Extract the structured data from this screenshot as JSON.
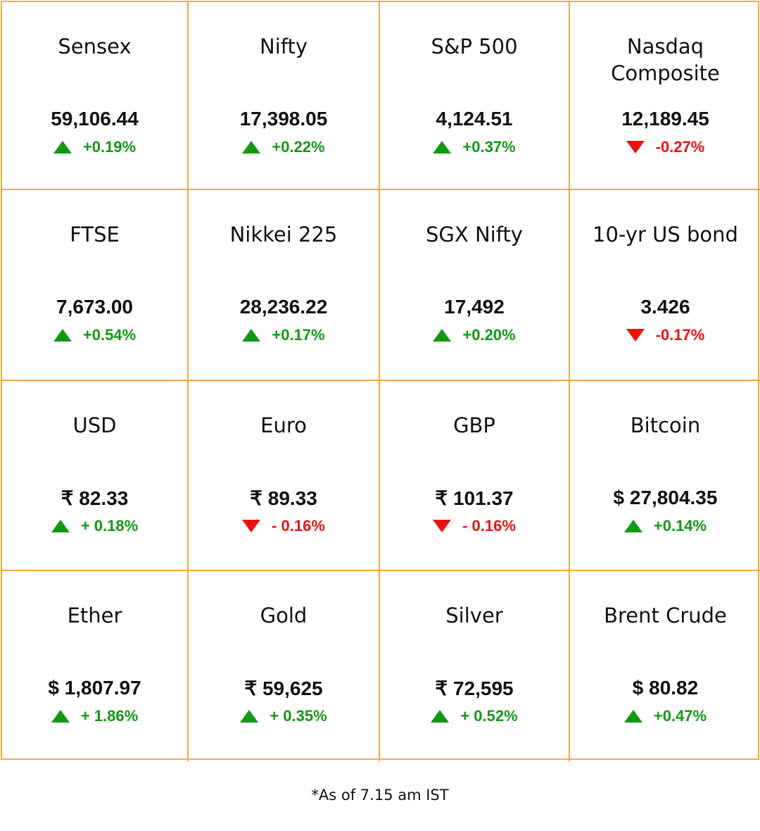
{
  "colors": {
    "border": "#F9A83E",
    "up": "#119911",
    "down": "#EE1111"
  },
  "cells": [
    {
      "title": "Sensex",
      "value": "59,106.44",
      "change": "+0.19%",
      "direction": "up"
    },
    {
      "title": "Nifty",
      "value": "17,398.05",
      "change": "+0.22%",
      "direction": "up"
    },
    {
      "title": "S&P 500",
      "value": "4,124.51",
      "change": "+0.37%",
      "direction": "up"
    },
    {
      "title": "Nasdaq Composite",
      "value": "12,189.45",
      "change": "-0.27%",
      "direction": "down"
    },
    {
      "title": "FTSE",
      "value": "7,673.00",
      "change": "+0.54%",
      "direction": "up"
    },
    {
      "title": "Nikkei 225",
      "value": "28,236.22",
      "change": "+0.17%",
      "direction": "up"
    },
    {
      "title": "SGX Nifty",
      "value": "17,492",
      "change": "+0.20%",
      "direction": "up"
    },
    {
      "title": "10-yr US bond",
      "value": "3.426",
      "change": "-0.17%",
      "direction": "down"
    },
    {
      "title": "USD",
      "value": "₹ 82.33",
      "change": "+ 0.18%",
      "direction": "up"
    },
    {
      "title": "Euro",
      "value": "₹ 89.33",
      "change": "- 0.16%",
      "direction": "down"
    },
    {
      "title": "GBP",
      "value": "₹ 101.37",
      "change": "- 0.16%",
      "direction": "down"
    },
    {
      "title": "Bitcoin",
      "value": "$  27,804.35",
      "change": "+0.14%",
      "direction": "up"
    },
    {
      "title": "Ether",
      "value": "$ 1,807.97",
      "change": "+ 1.86%",
      "direction": "up"
    },
    {
      "title": "Gold",
      "value": "₹ 59,625",
      "change": "+ 0.35%",
      "direction": "up"
    },
    {
      "title": "Silver",
      "value": "₹ 72,595",
      "change": "+ 0.52%",
      "direction": "up"
    },
    {
      "title": "Brent Crude",
      "value": "$ 80.82",
      "change": "+0.47%",
      "direction": "up"
    }
  ],
  "footer": "*As of 7.15 am IST"
}
